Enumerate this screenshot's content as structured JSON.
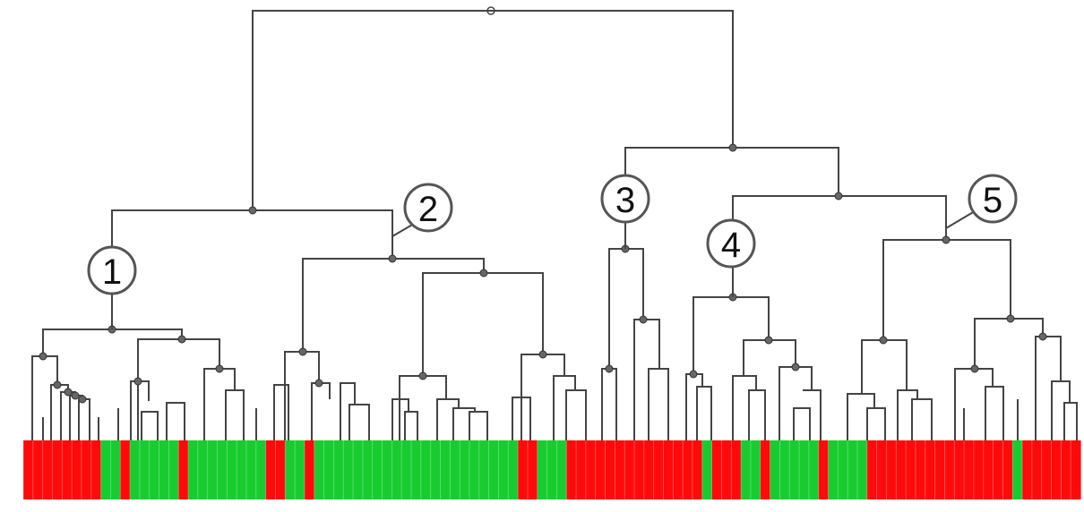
{
  "diagram": {
    "type": "dendrogram",
    "colors": {
      "red": "#ff0a0a",
      "green": "#18cc30",
      "line": "#444444"
    },
    "callouts": [
      {
        "id": 1,
        "label": "1"
      },
      {
        "id": 2,
        "label": "2"
      },
      {
        "id": 3,
        "label": "3"
      },
      {
        "id": 4,
        "label": "4"
      },
      {
        "id": 5,
        "label": "5"
      }
    ],
    "leaf_colors": [
      "R",
      "R",
      "R",
      "R",
      "R",
      "R",
      "R",
      "R",
      "G",
      "G",
      "R",
      "G",
      "G",
      "G",
      "G",
      "G",
      "R",
      "G",
      "G",
      "G",
      "G",
      "G",
      "G",
      "G",
      "G",
      "R",
      "R",
      "G",
      "G",
      "R",
      "G",
      "G",
      "G",
      "G",
      "G",
      "G",
      "G",
      "G",
      "G",
      "G",
      "G",
      "G",
      "G",
      "G",
      "G",
      "G",
      "G",
      "G",
      "G",
      "G",
      "G",
      "R",
      "R",
      "G",
      "G",
      "G",
      "R",
      "R",
      "R",
      "R",
      "R",
      "R",
      "R",
      "R",
      "R",
      "R",
      "R",
      "R",
      "R",
      "R",
      "G",
      "R",
      "R",
      "R",
      "G",
      "G",
      "R",
      "G",
      "G",
      "G",
      "G",
      "G",
      "R",
      "G",
      "G",
      "G",
      "G",
      "R",
      "R",
      "R",
      "R",
      "R",
      "R",
      "R",
      "R",
      "R",
      "R",
      "R",
      "R",
      "R",
      "R",
      "R",
      "G",
      "R",
      "R",
      "R",
      "R",
      "R",
      "R"
    ]
  }
}
